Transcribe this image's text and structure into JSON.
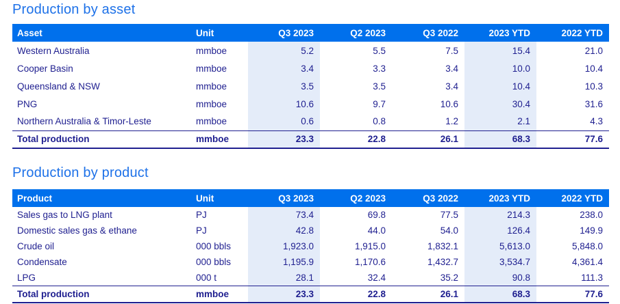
{
  "colors": {
    "header_background": "#0070EC",
    "shaded_column": "#E4ECF9",
    "body_text": "#1E1E8F",
    "title_text": "#1D71E8"
  },
  "shaded_column_indexes": [
    2,
    5
  ],
  "tables": [
    {
      "title": "Production by asset",
      "columns": [
        "Asset",
        "Unit",
        "Q3 2023",
        "Q2 2023",
        "Q3 2022",
        "2023 YTD",
        "2022 YTD"
      ],
      "rows": [
        [
          "Western Australia",
          "mmboe",
          "5.2",
          "5.5",
          "7.5",
          "15.4",
          "21.0"
        ],
        [
          "Cooper Basin",
          "mmboe",
          "3.4",
          "3.3",
          "3.4",
          "10.0",
          "10.4"
        ],
        [
          "Queensland & NSW",
          "mmboe",
          "3.5",
          "3.5",
          "3.4",
          "10.4",
          "10.3"
        ],
        [
          "PNG",
          "mmboe",
          "10.6",
          "9.7",
          "10.6",
          "30.4",
          "31.6"
        ],
        [
          "Northern Australia & Timor-Leste",
          "mmboe",
          "0.6",
          "0.8",
          "1.2",
          "2.1",
          "4.3"
        ]
      ],
      "total_row": [
        "Total production",
        "mmboe",
        "23.3",
        "22.8",
        "26.1",
        "68.3",
        "77.6"
      ]
    },
    {
      "title": "Production by product",
      "columns": [
        "Product",
        "Unit",
        "Q3 2023",
        "Q2 2023",
        "Q3 2022",
        "2023 YTD",
        "2022 YTD"
      ],
      "rows": [
        [
          "Sales gas to LNG plant",
          "PJ",
          "73.4",
          "69.8",
          "77.5",
          "214.3",
          "238.0"
        ],
        [
          "Domestic sales gas & ethane",
          "PJ",
          "42.8",
          "44.0",
          "54.0",
          "126.4",
          "149.9"
        ],
        [
          "Crude oil",
          "000 bbls",
          "1,923.0",
          "1,915.0",
          "1,832.1",
          "5,613.0",
          "5,848.0"
        ],
        [
          "Condensate",
          "000 bbls",
          "1,195.9",
          "1,170.6",
          "1,432.7",
          "3,534.7",
          "4,361.4"
        ],
        [
          "LPG",
          "000 t",
          "28.1",
          "32.4",
          "35.2",
          "90.8",
          "111.3"
        ]
      ],
      "total_row": [
        "Total production",
        "mmboe",
        "23.3",
        "22.8",
        "26.1",
        "68.3",
        "77.6"
      ]
    }
  ]
}
